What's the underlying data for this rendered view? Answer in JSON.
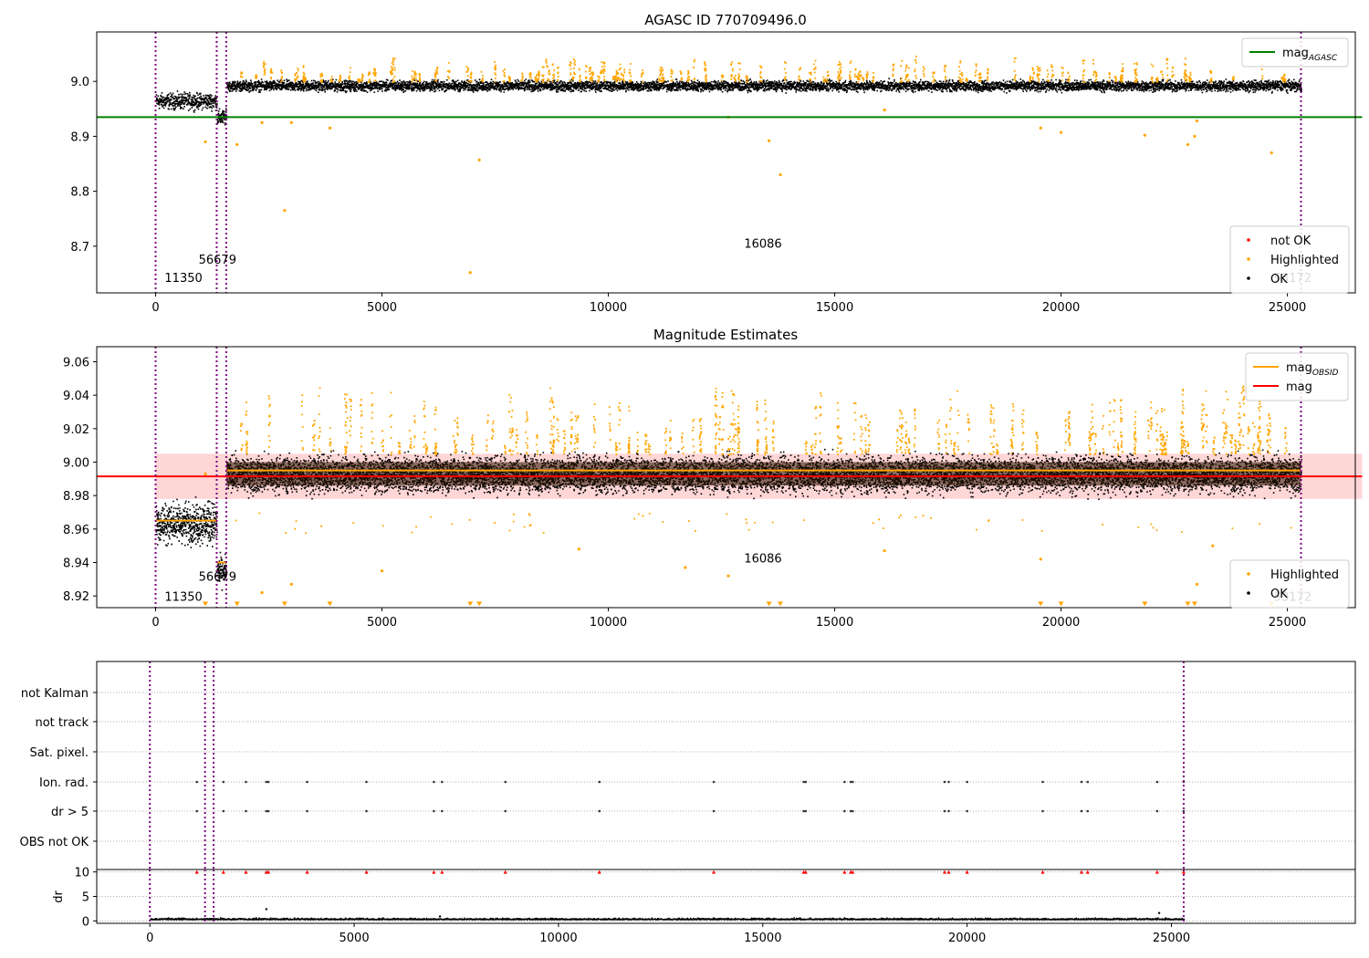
{
  "chart_data": [
    {
      "type": "scatter",
      "title": "AGASC ID 770709496.0",
      "xlim": [
        -1300,
        26500
      ],
      "ylim": [
        8.615,
        9.09
      ],
      "x_ticks": [
        0,
        5000,
        10000,
        15000,
        20000,
        25000
      ],
      "y_ticks": [
        8.7,
        8.8,
        8.9,
        9.0
      ],
      "grid": false,
      "legend_top": {
        "position": "top-right",
        "entries": [
          {
            "name": "mag",
            "sub": "AGASC",
            "color": "#008000"
          }
        ]
      },
      "legend_bottom": {
        "position": "bottom-right",
        "entries": [
          {
            "name": "not OK",
            "color": "#ff0000"
          },
          {
            "name": "Highlighted",
            "color": "#ffa500"
          },
          {
            "name": "OK",
            "color": "#000000"
          }
        ]
      },
      "lines": [
        {
          "name": "mag_AGASC",
          "y": 8.935,
          "x_range": [
            -1300,
            26650
          ],
          "color": "#008000"
        }
      ],
      "segments": [
        {
          "x0": 0,
          "x1": 1350,
          "mean": 8.965,
          "spread": 0.012
        },
        {
          "x0": 1350,
          "x1": 1560,
          "mean": 8.935,
          "spread": 0.012
        },
        {
          "x0": 1560,
          "x1": 25300,
          "mean": 8.993,
          "spread": 0.008
        }
      ],
      "outliers": [
        {
          "x": 1100,
          "y": 8.89
        },
        {
          "x": 1800,
          "y": 8.885
        },
        {
          "x": 2350,
          "y": 8.925
        },
        {
          "x": 2850,
          "y": 8.765
        },
        {
          "x": 3000,
          "y": 8.925
        },
        {
          "x": 3850,
          "y": 8.915
        },
        {
          "x": 6950,
          "y": 8.652
        },
        {
          "x": 7150,
          "y": 8.857
        },
        {
          "x": 12650,
          "y": 8.935
        },
        {
          "x": 13550,
          "y": 8.892
        },
        {
          "x": 13800,
          "y": 8.83
        },
        {
          "x": 16100,
          "y": 8.948
        },
        {
          "x": 19550,
          "y": 8.915
        },
        {
          "x": 20000,
          "y": 8.907
        },
        {
          "x": 21850,
          "y": 8.902
        },
        {
          "x": 22800,
          "y": 8.885
        },
        {
          "x": 22950,
          "y": 8.9
        },
        {
          "x": 23000,
          "y": 8.928
        },
        {
          "x": 24650,
          "y": 8.87
        }
      ],
      "obsid_lines": [
        0,
        1350,
        1560,
        25300
      ],
      "annotations": [
        {
          "text": "11350",
          "x": 200,
          "y": 8.635
        },
        {
          "text": "56679",
          "x": 950,
          "y": 8.668
        },
        {
          "text": "16086",
          "x": 13000,
          "y": 8.697
        },
        {
          "text": "53172",
          "x": 24700,
          "y": 8.635
        }
      ]
    },
    {
      "type": "scatter",
      "title": "Magnitude Estimates",
      "xlim": [
        -1300,
        26500
      ],
      "ylim": [
        8.913,
        9.069
      ],
      "x_ticks": [
        0,
        5000,
        10000,
        15000,
        20000,
        25000
      ],
      "y_ticks": [
        8.92,
        8.94,
        8.96,
        8.98,
        9.0,
        9.02,
        9.04,
        9.06
      ],
      "grid": false,
      "legend_top": {
        "position": "top-right",
        "entries": [
          {
            "name": "mag",
            "sub": "OBSID",
            "color": "#ffa500"
          },
          {
            "name": "mag",
            "color": "#ff0000"
          }
        ]
      },
      "legend_bottom": {
        "position": "bottom-right",
        "entries": [
          {
            "name": "Highlighted",
            "color": "#ffa500"
          },
          {
            "name": "OK",
            "color": "#000000"
          }
        ]
      },
      "lines": [
        {
          "name": "mag",
          "y": 8.9915,
          "x_range": [
            -1300,
            26650
          ],
          "color": "#ff0000"
        }
      ],
      "band": {
        "y0": 8.978,
        "y1": 9.005,
        "color": "#ffd6d6"
      },
      "obsid_mags": [
        {
          "x0": 0,
          "x1": 1350,
          "y": 8.965
        },
        {
          "x0": 1350,
          "x1": 1560,
          "y": 8.94
        },
        {
          "x0": 1560,
          "x1": 25300,
          "y": 8.995
        }
      ],
      "segments": [
        {
          "x0": 0,
          "x1": 1350,
          "mean": 8.964,
          "spread": 0.01
        },
        {
          "x0": 1350,
          "x1": 1560,
          "mean": 8.935,
          "spread": 0.007
        },
        {
          "x0": 1560,
          "x1": 25300,
          "mean": 8.993,
          "spread": 0.009
        }
      ],
      "outliers": [
        {
          "x": 1100,
          "y": 8.993
        },
        {
          "x": 2350,
          "y": 8.922
        },
        {
          "x": 3000,
          "y": 8.927
        },
        {
          "x": 5000,
          "y": 8.935
        },
        {
          "x": 9350,
          "y": 8.948
        },
        {
          "x": 11700,
          "y": 8.937
        },
        {
          "x": 12650,
          "y": 8.932
        },
        {
          "x": 16100,
          "y": 8.947
        },
        {
          "x": 19550,
          "y": 8.942
        },
        {
          "x": 23000,
          "y": 8.927
        },
        {
          "x": 23350,
          "y": 8.95
        }
      ],
      "clipped_x": [
        1100,
        1800,
        2850,
        3850,
        6950,
        7150,
        13550,
        13800,
        19550,
        20000,
        21850,
        22800,
        22950,
        24650
      ],
      "obsid_lines": [
        0,
        1350,
        1560,
        25300
      ],
      "annotations": [
        {
          "text": "11350",
          "x": 200,
          "y": 8.917
        },
        {
          "text": "56679",
          "x": 950,
          "y": 8.929
        },
        {
          "text": "16086",
          "x": 13000,
          "y": 8.94
        },
        {
          "text": "53172",
          "x": 24700,
          "y": 8.917
        }
      ]
    },
    {
      "type": "scatter",
      "title": "",
      "xlim": [
        -1300,
        29500
      ],
      "x_ticks": [
        0,
        5000,
        10000,
        15000,
        20000,
        25000
      ],
      "flag_labels": [
        "not Kalman",
        "not track",
        "Sat. pixel.",
        "Ion. rad.",
        "dr > 5",
        "OBS not OK"
      ],
      "flag_points": {
        "Ion. rad.": [
          1150,
          1800,
          2350,
          2850,
          2900,
          3850,
          5300,
          6950,
          7150,
          8700,
          11000,
          13800,
          16000,
          16050,
          17000,
          17150,
          17200,
          19450,
          19550,
          20000,
          21850,
          22800,
          22950,
          24650,
          25300
        ],
        "dr > 5": [
          1150,
          1800,
          2350,
          2850,
          2900,
          3850,
          5300,
          6950,
          7150,
          8700,
          11000,
          13800,
          16000,
          16050,
          17000,
          17150,
          17200,
          19450,
          19550,
          20000,
          21850,
          22800,
          22950,
          24650,
          25300
        ]
      },
      "dr": {
        "ylabel": "dr",
        "ylim": [
          -0.5,
          10.5
        ],
        "y_ticks": [
          0,
          5,
          10
        ],
        "clip_value": 10,
        "baseline": 0.35,
        "clipped_x": [
          1150,
          1800,
          2350,
          2850,
          2900,
          3850,
          5300,
          6950,
          7150,
          8700,
          11000,
          13800,
          16000,
          16050,
          17000,
          17150,
          17200,
          19450,
          19550,
          20000,
          21850,
          22800,
          22950,
          24650,
          25300
        ],
        "spikes": [
          {
            "x": 2850,
            "y": 2.4
          },
          {
            "x": 7100,
            "y": 0.9
          },
          {
            "x": 24700,
            "y": 1.6
          }
        ]
      },
      "obsid_lines": [
        0,
        1350,
        1560,
        25300
      ]
    }
  ]
}
